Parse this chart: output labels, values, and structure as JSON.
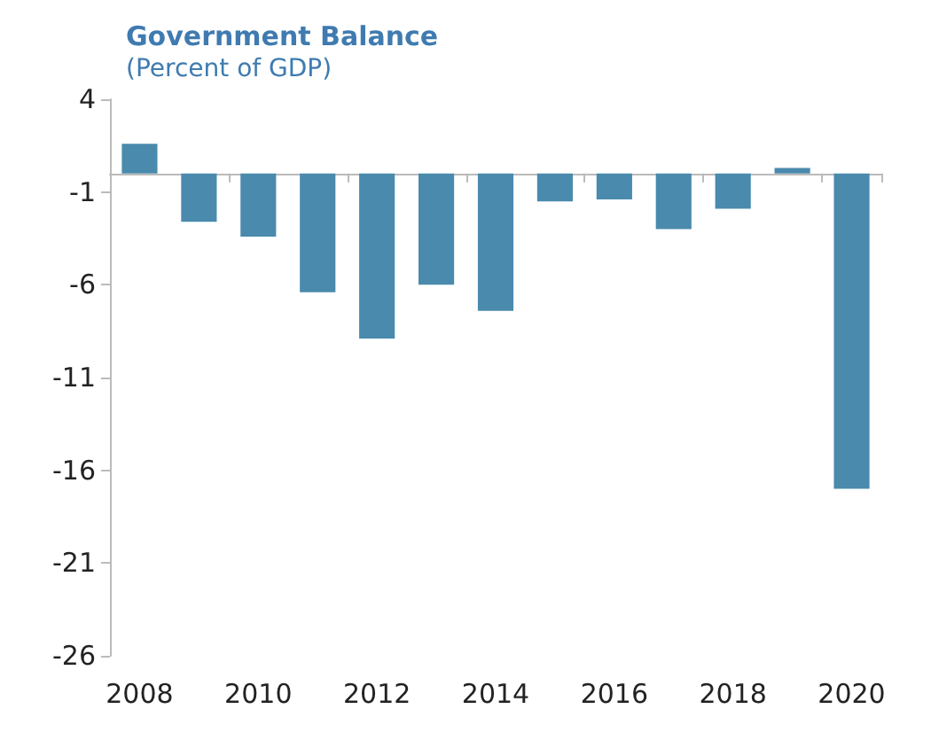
{
  "chart_data": {
    "type": "bar",
    "title": "Government Balance",
    "subtitle": "(Percent of GDP)",
    "categories": [
      "2008",
      null,
      "2010",
      null,
      "2012",
      null,
      "2014",
      null,
      "2016",
      null,
      "2018",
      null,
      "2020"
    ],
    "values": [
      1.6,
      -2.6,
      -3.4,
      -6.4,
      -8.9,
      -6.0,
      -7.4,
      -1.5,
      -1.4,
      -3.0,
      -1.9,
      0.3,
      -17.0
    ],
    "color": "#4a8aad",
    "ylim": [
      -26,
      4
    ],
    "yticks": [
      4,
      -1,
      -6,
      -11,
      -16,
      -21,
      -26
    ],
    "grid": false
  }
}
